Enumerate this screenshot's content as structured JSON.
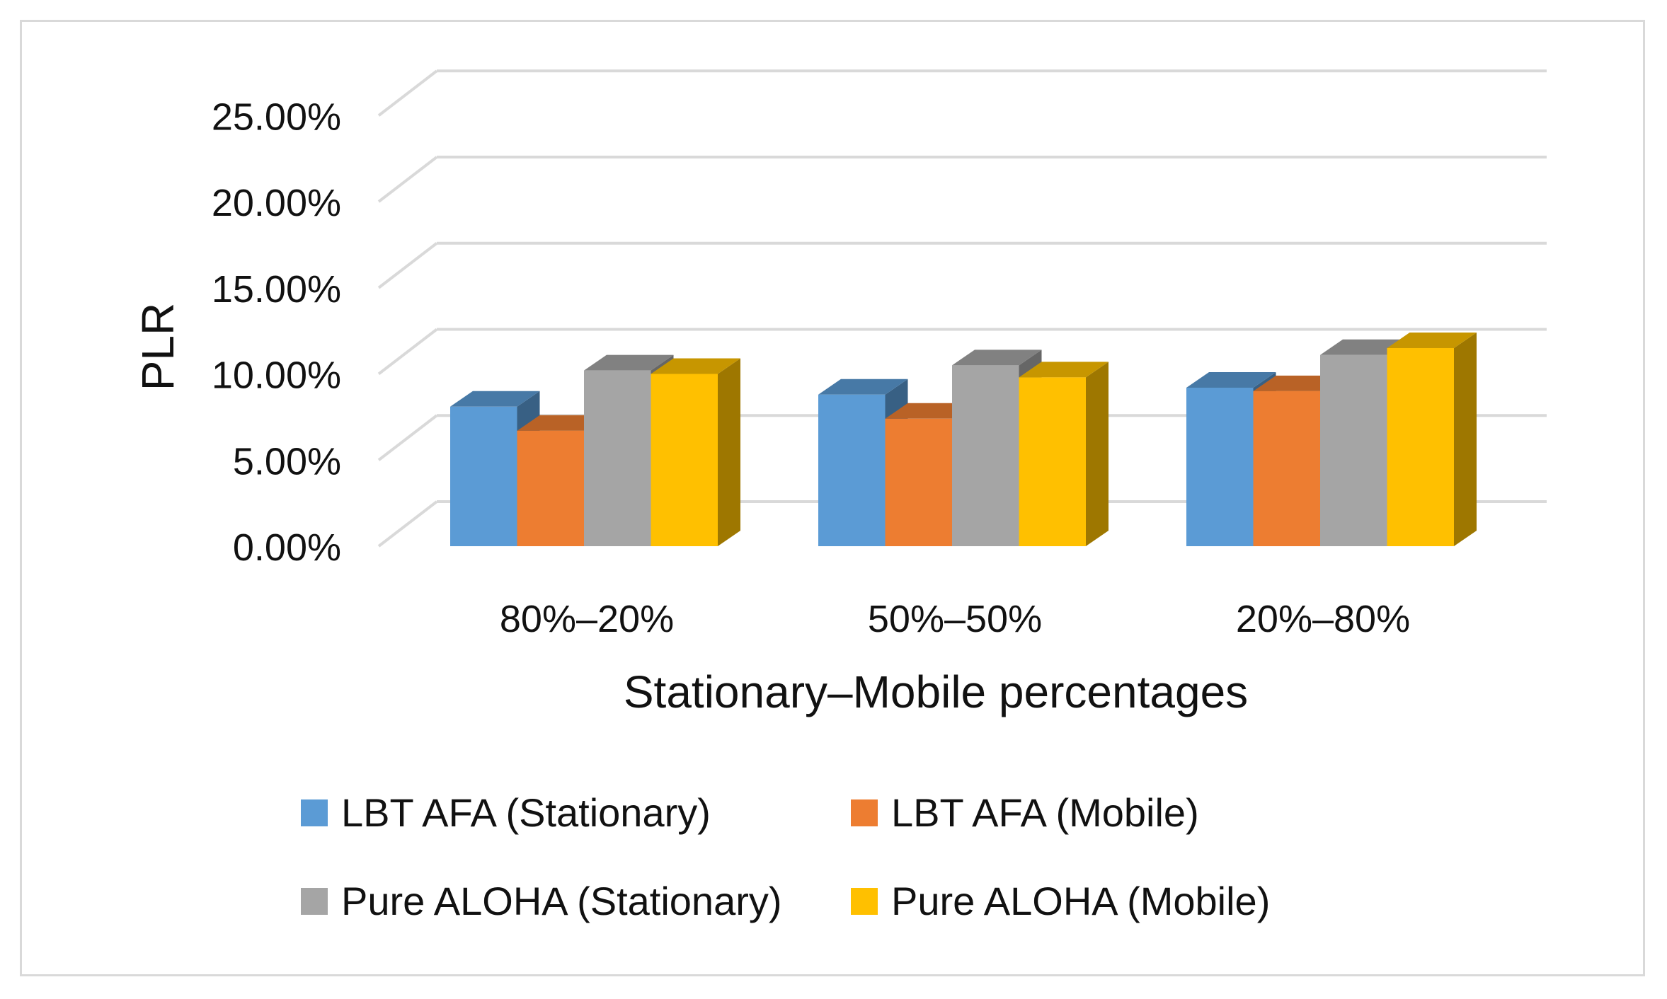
{
  "chart_data": {
    "type": "bar",
    "style": "3d-clustered-column",
    "title": "",
    "xlabel": "Stationary–Mobile percentages",
    "ylabel": "PLR",
    "categories": [
      "80%–20%",
      "50%–50%",
      "20%–80%"
    ],
    "ylim": [
      0,
      25
    ],
    "yticks": [
      0,
      5,
      10,
      15,
      20,
      25
    ],
    "ytick_labels": [
      "0.00%",
      "5.00%",
      "10.00%",
      "15.00%",
      "20.00%",
      "25.00%"
    ],
    "grid": true,
    "legend_position": "bottom",
    "series": [
      {
        "name": "LBT AFA (Stationary)",
        "color": "#5b9bd5",
        "values": [
          8.1,
          8.8,
          9.2
        ]
      },
      {
        "name": "LBT AFA (Mobile)",
        "color": "#ed7d31",
        "values": [
          6.7,
          7.4,
          9.0
        ]
      },
      {
        "name": "Pure ALOHA (Stationary)",
        "color": "#a5a5a5",
        "values": [
          10.2,
          10.5,
          11.1
        ]
      },
      {
        "name": "Pure ALOHA (Mobile)",
        "color": "#ffc000",
        "values": [
          10.0,
          9.8,
          11.5
        ]
      }
    ]
  }
}
